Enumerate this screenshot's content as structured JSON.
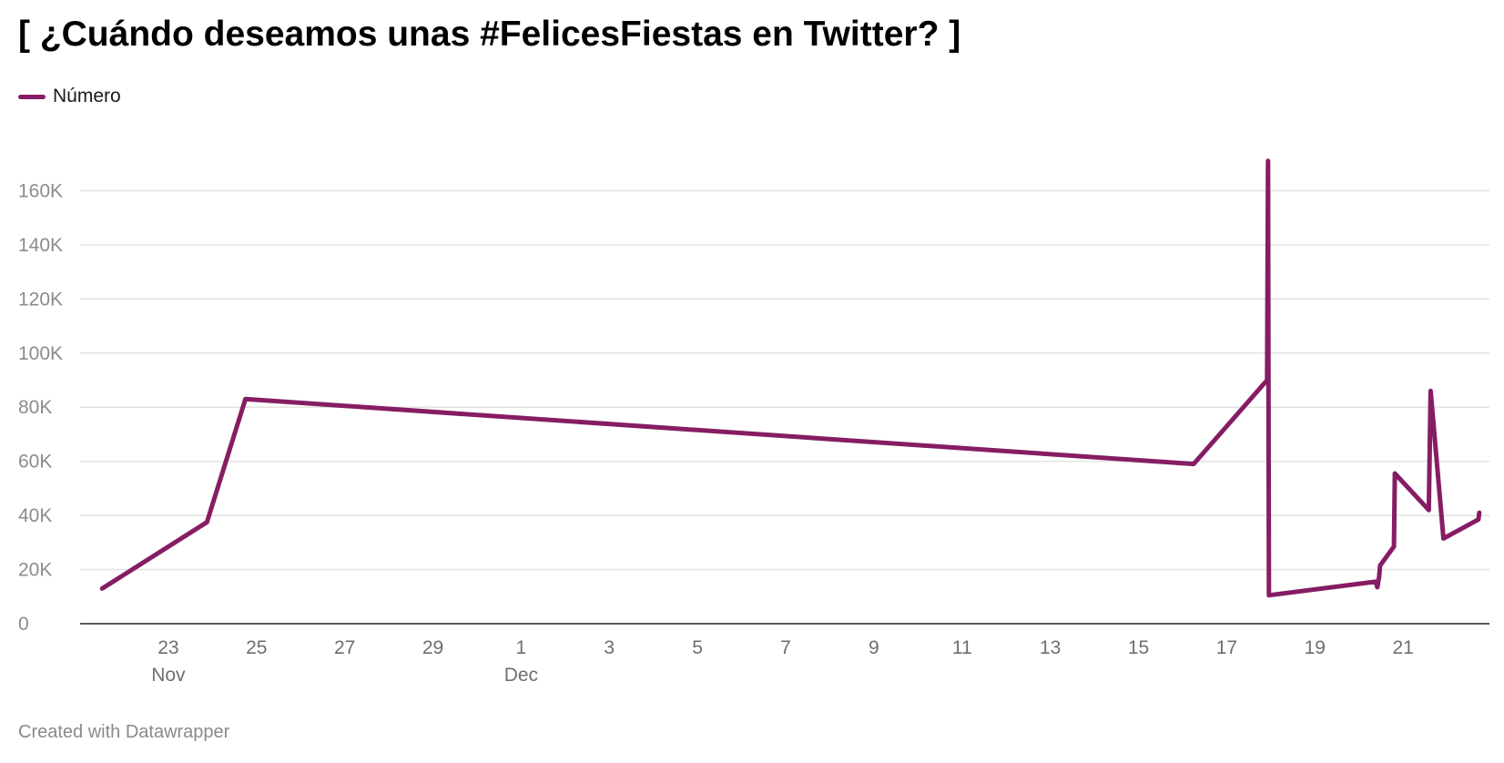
{
  "chart_data": {
    "type": "line",
    "title": "[ ¿Cuándo deseamos unas #FelicesFiestas en Twitter? ]",
    "legend": {
      "placement": "top-left"
    },
    "footer": "Created with Datawrapper",
    "grid": true,
    "series": [
      {
        "name": "Número",
        "color": "#861d64",
        "points": [
          {
            "x": "2020-11-21T12:00",
            "y": 13000
          },
          {
            "x": "2020-11-23T21:00",
            "y": 37500
          },
          {
            "x": "2020-11-24T18:00",
            "y": 83000
          },
          {
            "x": "2020-12-16T06:00",
            "y": 59000
          },
          {
            "x": "2020-12-17T22:00",
            "y": 90000
          },
          {
            "x": "2020-12-17T22:30",
            "y": 171000
          },
          {
            "x": "2020-12-17T23:00",
            "y": 10500
          },
          {
            "x": "2020-12-20T09:00",
            "y": 15500
          },
          {
            "x": "2020-12-20T10:00",
            "y": 13500
          },
          {
            "x": "2020-12-20T11:00",
            "y": 17500
          },
          {
            "x": "2020-12-20T11:30",
            "y": 21500
          },
          {
            "x": "2020-12-20T19:00",
            "y": 28500
          },
          {
            "x": "2020-12-20T19:30",
            "y": 55500
          },
          {
            "x": "2020-12-21T14:00",
            "y": 42000
          },
          {
            "x": "2020-12-21T15:00",
            "y": 86000
          },
          {
            "x": "2020-12-21T22:00",
            "y": 31500
          },
          {
            "x": "2020-12-22T17:00",
            "y": 38500
          },
          {
            "x": "2020-12-22T17:30",
            "y": 41000
          }
        ]
      }
    ],
    "yaxis": {
      "ylim": [
        0,
        180000
      ],
      "ticks": [
        {
          "value": 0,
          "label": "0"
        },
        {
          "value": 20000,
          "label": "20K"
        },
        {
          "value": 40000,
          "label": "40K"
        },
        {
          "value": 60000,
          "label": "60K"
        },
        {
          "value": 80000,
          "label": "80K"
        },
        {
          "value": 100000,
          "label": "100K"
        },
        {
          "value": 120000,
          "label": "120K"
        },
        {
          "value": 140000,
          "label": "140K"
        },
        {
          "value": 160000,
          "label": "160K"
        }
      ]
    },
    "xaxis": {
      "xlim": [
        "2020-11-21T00:00",
        "2020-12-22T23:00"
      ],
      "ticks": [
        {
          "value": "2020-11-23",
          "label": "23",
          "sublabel": "Nov"
        },
        {
          "value": "2020-11-25",
          "label": "25"
        },
        {
          "value": "2020-11-27",
          "label": "27"
        },
        {
          "value": "2020-11-29",
          "label": "29"
        },
        {
          "value": "2020-12-01",
          "label": "1",
          "sublabel": "Dec"
        },
        {
          "value": "2020-12-03",
          "label": "3"
        },
        {
          "value": "2020-12-05",
          "label": "5"
        },
        {
          "value": "2020-12-07",
          "label": "7"
        },
        {
          "value": "2020-12-09",
          "label": "9"
        },
        {
          "value": "2020-12-11",
          "label": "11"
        },
        {
          "value": "2020-12-13",
          "label": "13"
        },
        {
          "value": "2020-12-15",
          "label": "15"
        },
        {
          "value": "2020-12-17",
          "label": "17"
        },
        {
          "value": "2020-12-19",
          "label": "19"
        },
        {
          "value": "2020-12-21",
          "label": "21"
        }
      ]
    }
  }
}
